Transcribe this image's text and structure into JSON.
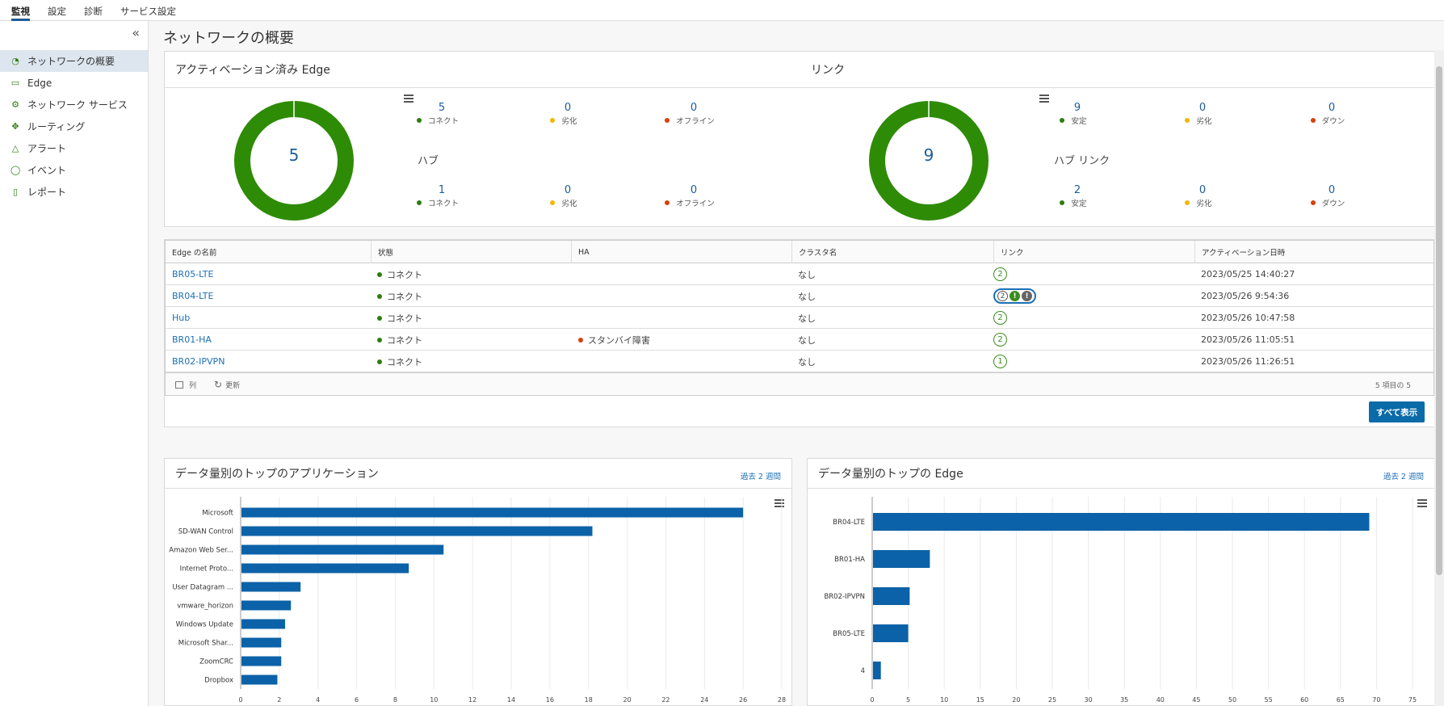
{
  "topnav": {
    "tabs": [
      "監視",
      "設定",
      "診断",
      "サービス設定"
    ],
    "active": 0
  },
  "sidebar": {
    "items": [
      {
        "label": "ネットワークの概要",
        "icon": "gauge-icon"
      },
      {
        "label": "Edge",
        "icon": "edge-icon"
      },
      {
        "label": "ネットワーク サービス",
        "icon": "services-icon"
      },
      {
        "label": "ルーティング",
        "icon": "routing-icon"
      },
      {
        "label": "アラート",
        "icon": "alert-icon"
      },
      {
        "label": "イベント",
        "icon": "event-icon"
      },
      {
        "label": "レポート",
        "icon": "report-icon"
      }
    ]
  },
  "page": {
    "title": "ネットワークの概要"
  },
  "summary": {
    "edges_title": "アクティベーション済み Edge",
    "links_title": "リンク",
    "edges_total": "5",
    "links_total": "9",
    "edge_stats": [
      {
        "value": "5",
        "label": "コネクト",
        "color": "#2e7d0f"
      },
      {
        "value": "0",
        "label": "劣化",
        "color": "#f2b705"
      },
      {
        "value": "0",
        "label": "オフライン",
        "color": "#d9400b"
      }
    ],
    "hub_title": "ハブ",
    "hub_stats": [
      {
        "value": "1",
        "label": "コネクト",
        "color": "#2e7d0f"
      },
      {
        "value": "0",
        "label": "劣化",
        "color": "#f2b705"
      },
      {
        "value": "0",
        "label": "オフライン",
        "color": "#d9400b"
      }
    ],
    "link_stats": [
      {
        "value": "9",
        "label": "安定",
        "color": "#2e7d0f"
      },
      {
        "value": "0",
        "label": "劣化",
        "color": "#f2b705"
      },
      {
        "value": "0",
        "label": "ダウン",
        "color": "#d9400b"
      }
    ],
    "hub_link_title": "ハブ リンク",
    "hub_link_stats": [
      {
        "value": "2",
        "label": "安定",
        "color": "#2e7d0f"
      },
      {
        "value": "0",
        "label": "劣化",
        "color": "#f2b705"
      },
      {
        "value": "0",
        "label": "ダウン",
        "color": "#d9400b"
      }
    ],
    "donut_color": "#2e8b06"
  },
  "table": {
    "columns": [
      "Edge の名前",
      "状態",
      "HA",
      "クラスタ名",
      "リンク",
      "アクティベーション日時"
    ],
    "rows": [
      {
        "name": "BR05-LTE",
        "status": "コネクト",
        "ha": "",
        "cluster": "なし",
        "links": "2",
        "extra": false,
        "activated": "2023/05/25 14:40:27"
      },
      {
        "name": "BR04-LTE",
        "status": "コネクト",
        "ha": "",
        "cluster": "なし",
        "links": "2",
        "extra": true,
        "activated": "2023/05/26 9:54:36"
      },
      {
        "name": "Hub",
        "status": "コネクト",
        "ha": "",
        "cluster": "なし",
        "links": "2",
        "extra": false,
        "activated": "2023/05/26 10:47:58"
      },
      {
        "name": "BR01-HA",
        "status": "コネクト",
        "ha": "スタンバイ障害",
        "cluster": "なし",
        "links": "2",
        "extra": false,
        "activated": "2023/05/26 11:05:51"
      },
      {
        "name": "BR02-IPVPN",
        "status": "コネクト",
        "ha": "",
        "cluster": "なし",
        "links": "1",
        "extra": false,
        "activated": "2023/05/26 11:26:51"
      }
    ],
    "footer_columns": "列",
    "footer_refresh": "更新",
    "footer_count": "5 項目の 5",
    "show_all": "すべて表示",
    "extra_badges": [
      "!",
      "!"
    ]
  },
  "apps_card": {
    "title": "データ量別のトップのアプリケーション",
    "period": "過去 2 週間"
  },
  "edges_card": {
    "title": "データ量別のトップの Edge",
    "period": "過去 2 週間"
  },
  "chart_data": [
    {
      "type": "bar",
      "orientation": "horizontal",
      "title": "データ量別のトップのアプリケーション",
      "categories": [
        "Microsoft",
        "SD-WAN Control",
        "Amazon Web Ser...",
        "Internet Proto...",
        "User Datagram ...",
        "vmware_horizon",
        "Windows Update",
        "Microsoft Shar...",
        "ZoomCRC",
        "Dropbox"
      ],
      "values": [
        26.0,
        18.2,
        10.5,
        8.7,
        3.1,
        2.6,
        2.3,
        2.1,
        2.1,
        1.9
      ],
      "ticks": [
        0,
        2,
        4,
        6,
        8,
        10,
        12,
        14,
        16,
        18,
        20,
        22,
        24,
        26,
        28
      ],
      "tick_units": [
        "bytes",
        "GB",
        "GB",
        "GB",
        "GB",
        "GB",
        "GB",
        "GB",
        "GB",
        "GB",
        "GB",
        "GB",
        "GB",
        "GB",
        "GB"
      ],
      "xlim": [
        0,
        28
      ],
      "grid": true,
      "bar_color": "#0b62a8"
    },
    {
      "type": "bar",
      "orientation": "horizontal",
      "title": "データ量別のトップの Edge",
      "categories": [
        "BR04-LTE",
        "BR01-HA",
        "BR02-IPVPN",
        "BR05-LTE",
        "4"
      ],
      "values": [
        69,
        8,
        5.2,
        5.0,
        1.2
      ],
      "ticks": [
        0,
        5,
        10,
        15,
        20,
        25,
        30,
        35,
        40,
        45,
        50,
        55,
        60,
        65,
        70,
        75
      ],
      "tick_units": [
        "bytes",
        "GB",
        "GB",
        "GB",
        "GB",
        "GB",
        "GB",
        "GB",
        "GB",
        "GB",
        "GB",
        "GB",
        "GB",
        "GB",
        "GB",
        "GB"
      ],
      "xlim": [
        0,
        75
      ],
      "grid": true,
      "bar_color": "#0b62a8"
    }
  ]
}
